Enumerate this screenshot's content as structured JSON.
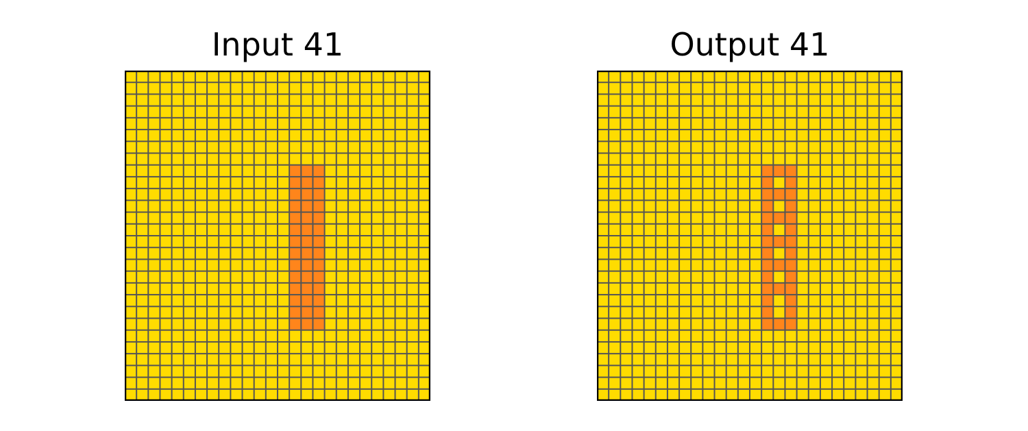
{
  "colors": {
    "background": "#FFDC00",
    "highlight": "#FF851B",
    "grid_line": "#555555",
    "border": "#000000"
  },
  "panels": [
    {
      "title": "Input 41",
      "rows": 28,
      "cols": 26,
      "background_value": 4,
      "cells": [
        [
          8,
          14,
          3
        ],
        [
          9,
          14,
          3
        ],
        [
          10,
          14,
          3
        ],
        [
          11,
          14,
          3
        ],
        [
          12,
          14,
          3
        ],
        [
          13,
          14,
          3
        ],
        [
          14,
          14,
          3
        ],
        [
          15,
          14,
          3
        ],
        [
          16,
          14,
          3
        ],
        [
          17,
          14,
          3
        ],
        [
          18,
          14,
          3
        ],
        [
          19,
          14,
          3
        ],
        [
          20,
          14,
          3
        ],
        [
          21,
          14,
          3
        ],
        [
          8,
          15,
          3
        ],
        [
          9,
          15,
          3
        ],
        [
          10,
          15,
          3
        ],
        [
          11,
          15,
          3
        ],
        [
          12,
          15,
          3
        ],
        [
          13,
          15,
          3
        ],
        [
          14,
          15,
          3
        ],
        [
          15,
          15,
          3
        ],
        [
          16,
          15,
          3
        ],
        [
          17,
          15,
          3
        ],
        [
          18,
          15,
          3
        ],
        [
          19,
          15,
          3
        ],
        [
          20,
          15,
          3
        ],
        [
          21,
          15,
          3
        ],
        [
          8,
          16,
          3
        ],
        [
          9,
          16,
          3
        ],
        [
          10,
          16,
          3
        ],
        [
          11,
          16,
          3
        ],
        [
          12,
          16,
          3
        ],
        [
          13,
          16,
          3
        ],
        [
          14,
          16,
          3
        ],
        [
          15,
          16,
          3
        ],
        [
          16,
          16,
          3
        ],
        [
          17,
          16,
          3
        ],
        [
          18,
          16,
          3
        ],
        [
          19,
          16,
          3
        ],
        [
          20,
          16,
          3
        ],
        [
          21,
          16,
          3
        ]
      ]
    },
    {
      "title": "Output 41",
      "rows": 28,
      "cols": 26,
      "background_value": 4,
      "cells": [
        [
          8,
          14,
          3
        ],
        [
          9,
          14,
          3
        ],
        [
          10,
          14,
          3
        ],
        [
          11,
          14,
          3
        ],
        [
          12,
          14,
          3
        ],
        [
          13,
          14,
          3
        ],
        [
          14,
          14,
          3
        ],
        [
          15,
          14,
          3
        ],
        [
          16,
          14,
          3
        ],
        [
          17,
          14,
          3
        ],
        [
          18,
          14,
          3
        ],
        [
          19,
          14,
          3
        ],
        [
          20,
          14,
          3
        ],
        [
          21,
          14,
          3
        ],
        [
          8,
          15,
          3
        ],
        [
          21,
          15,
          3
        ],
        [
          8,
          16,
          3
        ],
        [
          9,
          16,
          3
        ],
        [
          10,
          16,
          3
        ],
        [
          11,
          16,
          3
        ],
        [
          12,
          16,
          3
        ],
        [
          13,
          16,
          3
        ],
        [
          14,
          16,
          3
        ],
        [
          15,
          16,
          3
        ],
        [
          16,
          16,
          3
        ],
        [
          17,
          16,
          3
        ],
        [
          18,
          16,
          3
        ],
        [
          19,
          16,
          3
        ],
        [
          20,
          16,
          3
        ],
        [
          21,
          16,
          3
        ],
        [
          10,
          15,
          3
        ],
        [
          12,
          15,
          3
        ],
        [
          14,
          15,
          3
        ],
        [
          16,
          15,
          3
        ],
        [
          18,
          15,
          3
        ]
      ]
    }
  ]
}
